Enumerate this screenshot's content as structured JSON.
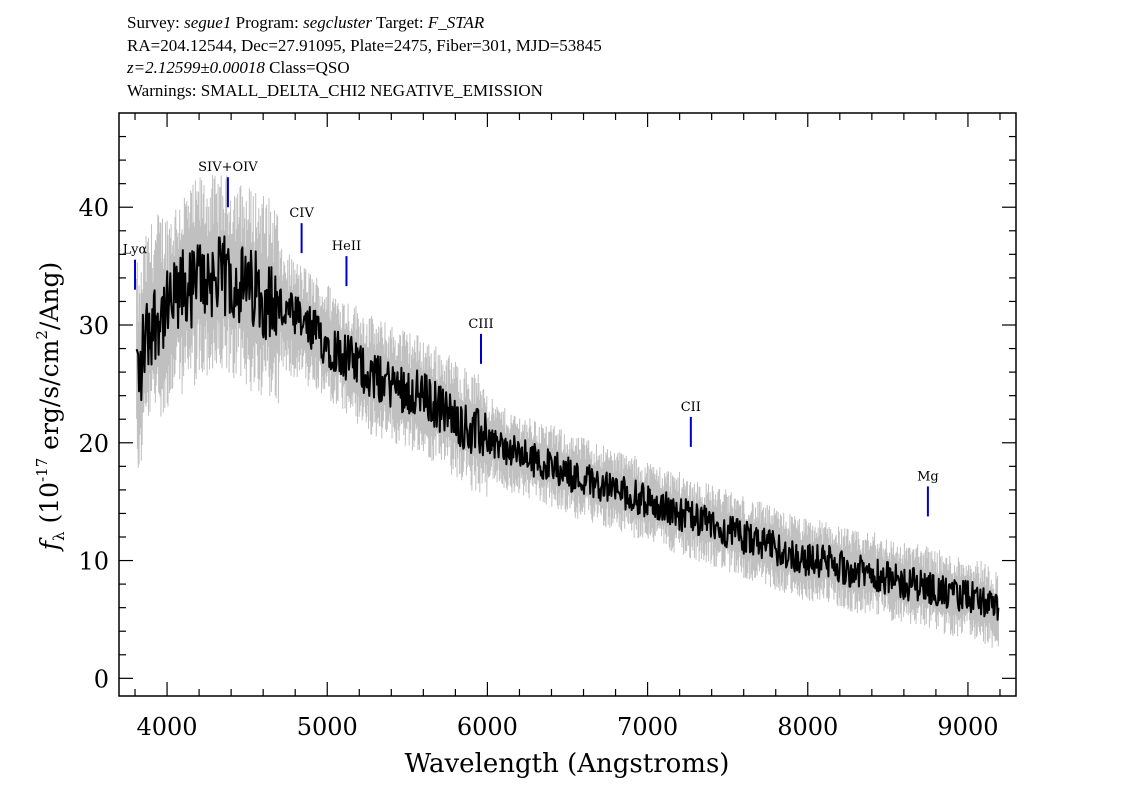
{
  "header": {
    "survey_label": "Survey:",
    "survey": "segue1",
    "program_label": "Program:",
    "program": "segcluster",
    "target_label": "Target:",
    "target": "F_STAR",
    "coords": "RA=204.12544, Dec=27.91095, Plate=2475, Fiber=301, MJD=53845",
    "redshift": "z=2.12599±0.00018",
    "class": "Class=QSO",
    "warnings": "Warnings: SMALL_DELTA_CHI2 NEGATIVE_EMISSION"
  },
  "colors": {
    "flux": "#000000",
    "noise_band": "#c0c0c0",
    "line_marker": "#0000cc",
    "axes": "#000000"
  },
  "chart_data": {
    "type": "line",
    "xlabel": "Wavelength (Angstroms)",
    "ylabel": "f_λ (10^-17 erg/s/cm^2/Ang)",
    "xlim": [
      3700,
      9300
    ],
    "ylim": [
      -1.5,
      48
    ],
    "x_ticks": [
      4000,
      5000,
      6000,
      7000,
      8000,
      9000
    ],
    "y_ticks": [
      0,
      10,
      20,
      30,
      40
    ],
    "grid": false,
    "series": [
      {
        "kind": "flux",
        "x": [
          3810,
          3830,
          3850,
          3870,
          3900,
          3950,
          4000,
          4050,
          4100,
          4150,
          4200,
          4250,
          4300,
          4350,
          4400,
          4450,
          4500,
          4550,
          4600,
          4650,
          4700,
          4750,
          4800,
          4850,
          4900,
          4950,
          5000,
          5100,
          5200,
          5300,
          5400,
          5500,
          5600,
          5700,
          5800,
          5900,
          6000,
          6100,
          6200,
          6300,
          6400,
          6500,
          6550,
          6600,
          6700,
          6800,
          6900,
          7000,
          7100,
          7200,
          7300,
          7400,
          7500,
          7600,
          7700,
          7800,
          7900,
          8000,
          8100,
          8200,
          8300,
          8400,
          8500,
          8600,
          8700,
          8800,
          8900,
          9000,
          9100,
          9150,
          9190
        ],
        "y": [
          27,
          25,
          28,
          29,
          30,
          31,
          31,
          32,
          33,
          33,
          34,
          34,
          34,
          34,
          34,
          33.5,
          33,
          33,
          32.5,
          32,
          31.5,
          31,
          30.5,
          30,
          29.5,
          29,
          28.5,
          27.5,
          26.5,
          25.5,
          25,
          24.5,
          24,
          23,
          22,
          21,
          20.5,
          19.5,
          19,
          18.5,
          18,
          17.5,
          17,
          17,
          16.5,
          16,
          15.5,
          15,
          14.5,
          14,
          13.5,
          13,
          12.5,
          12,
          11.5,
          11,
          10.5,
          10,
          10,
          9.5,
          9,
          9,
          8.5,
          8,
          8,
          7.5,
          7,
          7,
          6.5,
          6,
          5.5
        ]
      }
    ],
    "annotations": [
      {
        "label": "Lyα",
        "x": 3800
      },
      {
        "label": "SIV+OIV",
        "x": 4380
      },
      {
        "label": "CIV",
        "x": 4840
      },
      {
        "label": "HeII",
        "x": 5120
      },
      {
        "label": "CIII",
        "x": 5960
      },
      {
        "label": "CII",
        "x": 7270
      },
      {
        "label": "Mg",
        "x": 8750
      }
    ]
  }
}
